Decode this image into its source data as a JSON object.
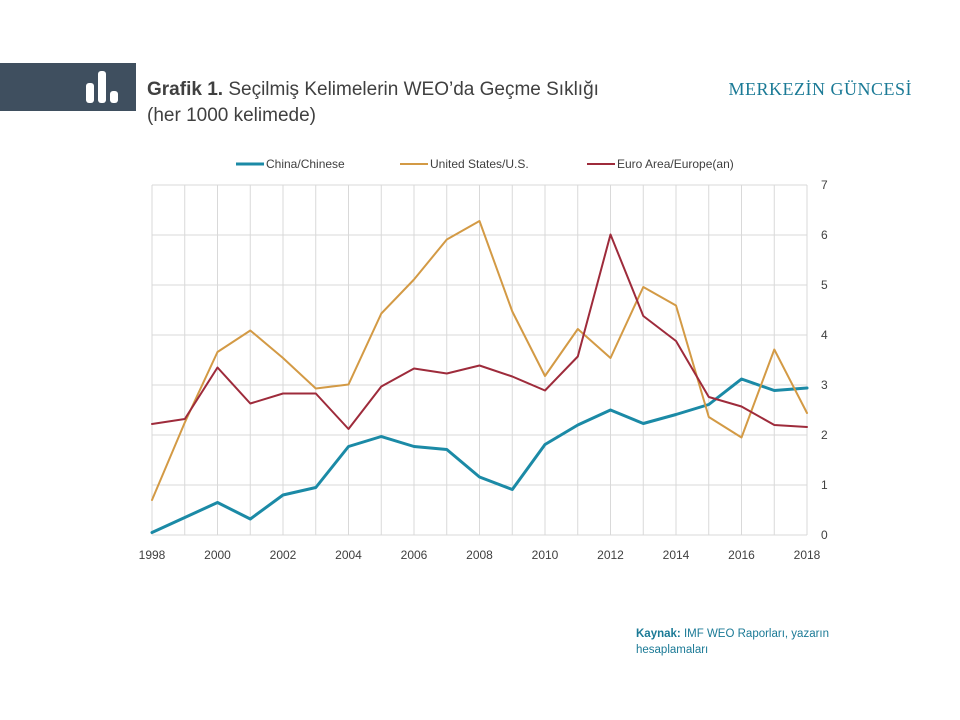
{
  "header": {
    "title_lead": "Grafik 1.",
    "title_text": "Seçilmiş Kelimelerin WEO’da Geçme Sıklığı",
    "subtitle": "(her 1000 kelimede)",
    "brand": "MERKEZİN GÜNCESİ",
    "icon": "bar-chart-icon"
  },
  "source": {
    "label": "Kaynak:",
    "text": "IMF WEO Raporları, yazarın hesaplamaları"
  },
  "colors": {
    "china": "#1b8aa6",
    "us": "#d39a45",
    "euro": "#9e2b3b",
    "grid": "#d9d9d9",
    "axis_text": "#404040"
  },
  "chart_data": {
    "type": "line",
    "x": [
      1998,
      1999,
      2000,
      2001,
      2002,
      2003,
      2004,
      2005,
      2006,
      2007,
      2008,
      2009,
      2010,
      2011,
      2012,
      2013,
      2014,
      2015,
      2016,
      2017,
      2018
    ],
    "xlim": [
      1998,
      2018
    ],
    "xticks": [
      1998,
      2000,
      2002,
      2004,
      2006,
      2008,
      2010,
      2012,
      2014,
      2016,
      2018
    ],
    "ylim": [
      0,
      7
    ],
    "yticks": [
      0,
      1,
      2,
      3,
      4,
      5,
      6,
      7
    ],
    "y_axis_side": "right",
    "grid": true,
    "legend_position": "top",
    "series": [
      {
        "name": "China/Chinese",
        "key": "china",
        "values": [
          0.05,
          0.35,
          0.65,
          0.32,
          0.8,
          0.95,
          1.77,
          1.97,
          1.77,
          1.71,
          1.16,
          0.91,
          1.81,
          2.2,
          2.5,
          2.23,
          2.41,
          2.61,
          3.12,
          2.89,
          2.94
        ]
      },
      {
        "name": "United States/U.S.",
        "key": "us",
        "values": [
          0.7,
          2.25,
          3.66,
          4.09,
          3.54,
          2.93,
          3.01,
          4.43,
          5.11,
          5.91,
          6.28,
          4.47,
          3.18,
          4.12,
          3.54,
          4.96,
          4.59,
          2.36,
          1.95,
          3.71,
          2.44
        ]
      },
      {
        "name": "Euro Area/Europe(an)",
        "key": "euro",
        "values": [
          2.22,
          2.32,
          3.35,
          2.63,
          2.83,
          2.83,
          2.12,
          2.97,
          3.33,
          3.23,
          3.39,
          3.17,
          2.89,
          3.57,
          6.01,
          4.38,
          3.88,
          2.76,
          2.57,
          2.2,
          2.16
        ]
      }
    ]
  }
}
